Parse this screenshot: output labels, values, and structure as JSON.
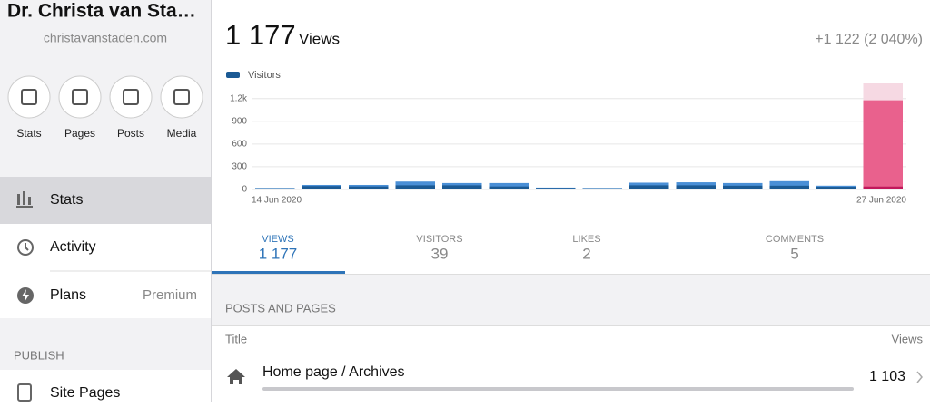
{
  "sidebar": {
    "site_title": "Dr. Christa van Sta…",
    "site_url": "christavanstaden.com",
    "quick_actions": [
      "Stats",
      "Pages",
      "Posts",
      "Media"
    ],
    "menu": [
      {
        "label": "Stats"
      },
      {
        "label": "Activity"
      },
      {
        "label": "Plans",
        "detail": "Premium"
      }
    ],
    "section": "PUBLISH",
    "publish_menu": [
      "Site Pages"
    ]
  },
  "header": {
    "total": "1 177",
    "unit": "Views",
    "change": "+1 122 (2 040%)"
  },
  "chart_data": {
    "type": "bar",
    "categories": [
      "14 Jun 2020",
      null,
      null,
      null,
      null,
      null,
      null,
      null,
      null,
      null,
      null,
      null,
      null,
      "27 Jun 2020"
    ],
    "series": [
      {
        "color": "#4a8fd6",
        "values": [
          20,
          60,
          60,
          105,
          85,
          85,
          25,
          20,
          90,
          95,
          85,
          110,
          50,
          1177
        ]
      },
      {
        "name": "Visitors",
        "color": "#1b5a94",
        "values": [
          15,
          45,
          40,
          55,
          55,
          40,
          20,
          15,
          55,
          55,
          50,
          50,
          35,
          39
        ]
      }
    ],
    "highlight_colors": [
      "#e9618d",
      "#c2185b"
    ],
    "ylim": [
      0,
      1400
    ],
    "yticks": [
      0,
      300,
      600,
      900,
      {
        "value": 1200,
        "label": "1.2k"
      }
    ],
    "grid": true
  },
  "tabs": [
    {
      "label": "VIEWS",
      "value": "1 177"
    },
    {
      "label": "VISITORS",
      "value": "39"
    },
    {
      "label": "LIKES",
      "value": "2"
    },
    {
      "label": "COMMENTS",
      "value": "5"
    }
  ],
  "posts": {
    "section": "POSTS AND PAGES",
    "columns": [
      "Title",
      "Views"
    ],
    "rows": [
      {
        "title": "Home page / Archives",
        "views": "1 103"
      }
    ]
  }
}
